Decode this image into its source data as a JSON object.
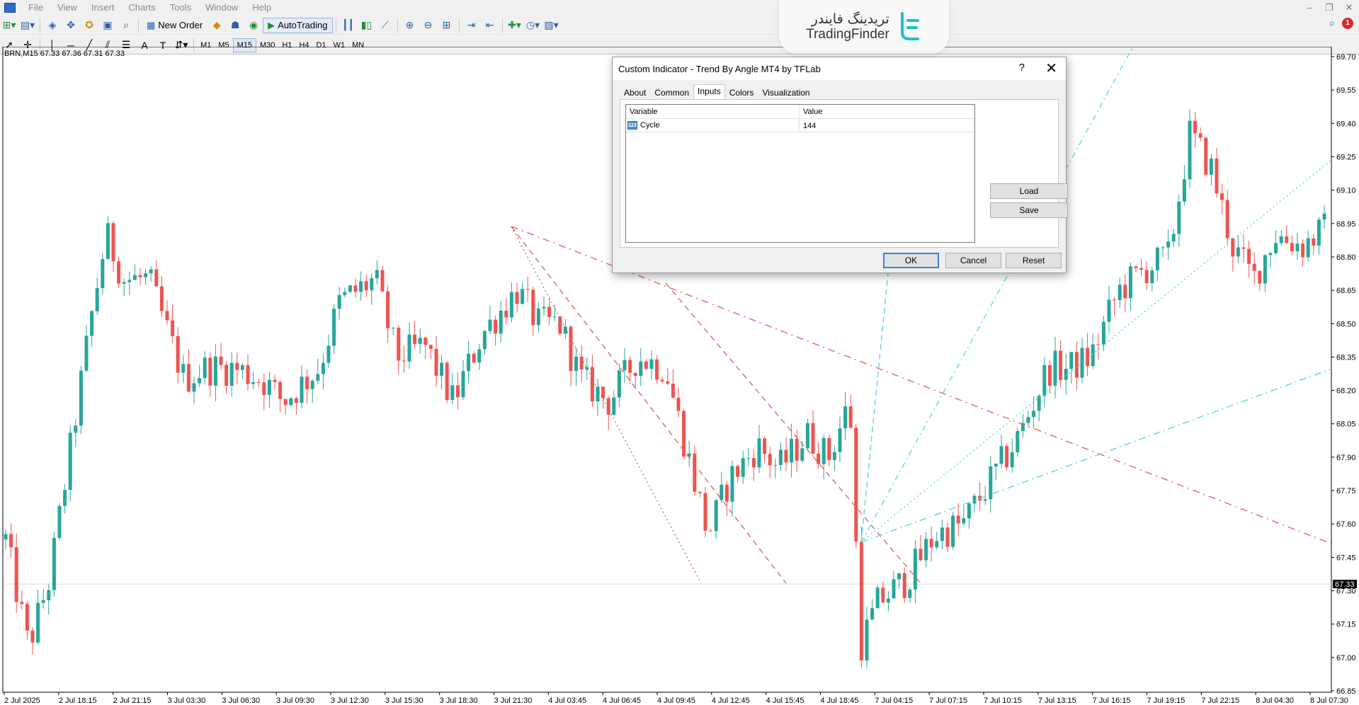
{
  "menu": {
    "items": [
      "File",
      "Insert",
      "Charts",
      "Tools",
      "Window",
      "Help"
    ],
    "view_label": "View"
  },
  "toolbar": {
    "new_order_label": "New Order",
    "autotrading_label": "AutoTrading"
  },
  "timeframes": [
    "M1",
    "M5",
    "M15",
    "M30",
    "H1",
    "H4",
    "D1",
    "W1",
    "MN"
  ],
  "active_timeframe": "M15",
  "logo": {
    "fa": "تریدینگ فایندر",
    "en": "TradingFinder"
  },
  "notifications": {
    "count": "1"
  },
  "chart": {
    "symbol_label": "BRN,M15  67.33 67.36 67.31 67.33",
    "current_price_label": "67.33",
    "colors": {
      "bull": "#26a69a",
      "bear": "#ef5350",
      "red_line": "#e05a5a",
      "cyan_line": "#5ad8e0"
    }
  },
  "chart_data": {
    "type": "candlestick",
    "symbol": "BRN",
    "timeframe": "M15",
    "ohlc_header": {
      "open": 67.33,
      "high": 67.36,
      "low": 67.31,
      "close": 67.33
    },
    "ylim": [
      66.85,
      69.7
    ],
    "y_ticks": [
      "69.70",
      "69.55",
      "69.40",
      "69.25",
      "69.10",
      "68.95",
      "68.80",
      "68.65",
      "68.50",
      "68.35",
      "68.20",
      "68.05",
      "67.90",
      "67.75",
      "67.60",
      "67.45",
      "67.30",
      "67.15",
      "67.00",
      "66.85"
    ],
    "x_ticks": [
      "2 Jul 2025",
      "2 Jul 18:15",
      "2 Jul 21:15",
      "3 Jul 03:30",
      "3 Jul 06:30",
      "3 Jul 09:30",
      "3 Jul 12:30",
      "3 Jul 15:30",
      "3 Jul 18:30",
      "3 Jul 21:30",
      "4 Jul 03:45",
      "4 Jul 06:45",
      "4 Jul 09:45",
      "4 Jul 12:45",
      "4 Jul 15:45",
      "4 Jul 18:45",
      "7 Jul 04:15",
      "7 Jul 07:15",
      "7 Jul 10:15",
      "7 Jul 13:15",
      "7 Jul 16:15",
      "7 Jul 19:15",
      "7 Jul 22:15",
      "8 Jul 04:30",
      "8 Jul 07:30"
    ],
    "current_price": 67.33
  },
  "dialog": {
    "title": "Custom Indicator - Trend By Angle MT4 by TFLab",
    "help_glyph": "?",
    "close_glyph": "✕",
    "tabs": [
      "About",
      "Common",
      "Inputs",
      "Colors",
      "Visualization"
    ],
    "active_tab": "Inputs",
    "table": {
      "headers": {
        "variable": "Variable",
        "value": "Value"
      },
      "rows": [
        {
          "variable": "Cycle",
          "value": "144",
          "icon": "123"
        }
      ]
    },
    "buttons": {
      "load": "Load",
      "save": "Save",
      "ok": "OK",
      "cancel": "Cancel",
      "reset": "Reset"
    }
  }
}
